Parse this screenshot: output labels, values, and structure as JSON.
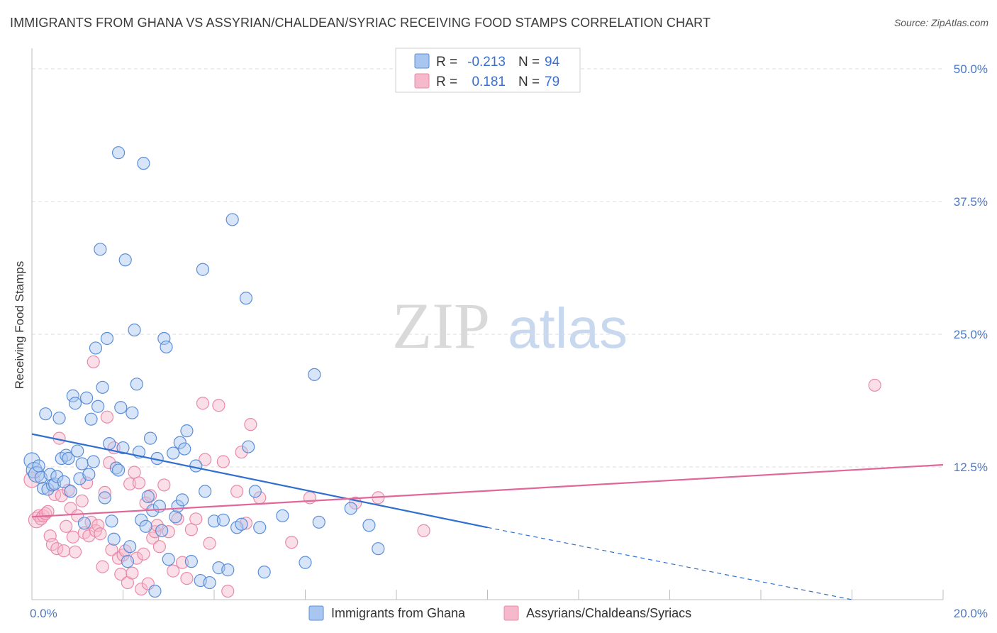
{
  "title": "IMMIGRANTS FROM GHANA VS ASSYRIAN/CHALDEAN/SYRIAC RECEIVING FOOD STAMPS CORRELATION CHART",
  "source": "Source: ZipAtlas.com",
  "watermark": {
    "zip": "ZIP",
    "atlas": "atlas"
  },
  "colors": {
    "blue_fill": "#a9c6f0",
    "blue_stroke": "#5a8ed8",
    "blue_line": "#2f6fd0",
    "pink_fill": "#f6b8cb",
    "pink_stroke": "#e98aa8",
    "pink_line": "#e0679a",
    "tick_label": "#4a78c7"
  },
  "legend_top": {
    "rows": [
      {
        "r_label": "R =",
        "r_value": "-0.213",
        "n_label": "N =",
        "n_value": "94"
      },
      {
        "r_label": "R =",
        "r_value": "0.181",
        "n_label": "N =",
        "n_value": "79"
      }
    ]
  },
  "chart_data": {
    "type": "scatter",
    "title": "IMMIGRANTS FROM GHANA VS ASSYRIAN/CHALDEAN/SYRIAC RECEIVING FOOD STAMPS CORRELATION CHART",
    "xlabel": "",
    "ylabel": "Receiving Food Stamps",
    "xlim": [
      0,
      20
    ],
    "ylim": [
      0,
      50
    ],
    "x_ticks": [
      {
        "value": 0,
        "label": "0.0%"
      },
      {
        "value": 20,
        "label": "20.0%"
      }
    ],
    "y_ticks": [
      {
        "value": 12.5,
        "label": "12.5%"
      },
      {
        "value": 25,
        "label": "25.0%"
      },
      {
        "value": 37.5,
        "label": "37.5%"
      },
      {
        "value": 50,
        "label": "50.0%"
      }
    ],
    "grid": true,
    "legend_position": "bottom",
    "series": [
      {
        "name": "Immigrants from Ghana",
        "color": "#a9c6f0",
        "trend": {
          "x_start": 0,
          "y_start": 15.6,
          "x_end": 10,
          "y_end": 6.8,
          "dashed_x_end": 18,
          "dashed_y_end": 0
        },
        "points": [
          [
            0.0,
            13.1
          ],
          [
            0.05,
            12.2
          ],
          [
            0.1,
            11.8
          ],
          [
            0.15,
            12.6
          ],
          [
            0.2,
            11.5
          ],
          [
            0.25,
            10.5
          ],
          [
            0.3,
            17.5
          ],
          [
            0.35,
            10.4
          ],
          [
            0.4,
            11.8
          ],
          [
            0.45,
            10.8
          ],
          [
            0.5,
            10.9
          ],
          [
            0.55,
            11.6
          ],
          [
            0.6,
            17.1
          ],
          [
            0.65,
            13.3
          ],
          [
            0.7,
            11.1
          ],
          [
            0.75,
            13.6
          ],
          [
            0.8,
            13.3
          ],
          [
            0.85,
            10.2
          ],
          [
            0.9,
            19.2
          ],
          [
            0.95,
            18.5
          ],
          [
            1.0,
            14.0
          ],
          [
            1.05,
            11.4
          ],
          [
            1.1,
            12.8
          ],
          [
            1.15,
            7.2
          ],
          [
            1.2,
            19.0
          ],
          [
            1.25,
            11.8
          ],
          [
            1.3,
            17.0
          ],
          [
            1.35,
            13.0
          ],
          [
            1.4,
            23.7
          ],
          [
            1.45,
            18.2
          ],
          [
            1.5,
            33.0
          ],
          [
            1.55,
            20.0
          ],
          [
            1.6,
            9.6
          ],
          [
            1.65,
            24.6
          ],
          [
            1.7,
            14.7
          ],
          [
            1.75,
            7.4
          ],
          [
            1.8,
            5.7
          ],
          [
            1.85,
            12.4
          ],
          [
            1.9,
            42.1
          ],
          [
            1.95,
            18.1
          ],
          [
            2.0,
            14.3
          ],
          [
            2.05,
            32.0
          ],
          [
            2.1,
            3.6
          ],
          [
            2.15,
            5.0
          ],
          [
            2.2,
            17.6
          ],
          [
            2.25,
            25.4
          ],
          [
            2.3,
            20.3
          ],
          [
            2.35,
            13.9
          ],
          [
            2.4,
            7.5
          ],
          [
            2.45,
            41.1
          ],
          [
            2.5,
            6.9
          ],
          [
            2.55,
            9.7
          ],
          [
            2.6,
            15.2
          ],
          [
            2.65,
            8.4
          ],
          [
            2.7,
            0.8
          ],
          [
            2.75,
            13.3
          ],
          [
            2.8,
            8.8
          ],
          [
            2.85,
            6.5
          ],
          [
            2.9,
            24.6
          ],
          [
            2.95,
            23.8
          ],
          [
            3.0,
            3.8
          ],
          [
            3.1,
            13.8
          ],
          [
            3.15,
            7.8
          ],
          [
            3.2,
            8.8
          ],
          [
            3.25,
            14.8
          ],
          [
            3.3,
            9.4
          ],
          [
            3.35,
            14.2
          ],
          [
            3.4,
            15.9
          ],
          [
            3.5,
            3.6
          ],
          [
            3.6,
            12.6
          ],
          [
            3.7,
            1.8
          ],
          [
            3.75,
            31.1
          ],
          [
            3.8,
            10.2
          ],
          [
            3.9,
            1.6
          ],
          [
            4.0,
            7.4
          ],
          [
            4.1,
            3.0
          ],
          [
            4.2,
            7.5
          ],
          [
            4.3,
            2.8
          ],
          [
            4.4,
            35.8
          ],
          [
            4.5,
            6.8
          ],
          [
            4.6,
            7.1
          ],
          [
            4.7,
            28.4
          ],
          [
            4.75,
            14.4
          ],
          [
            4.9,
            10.2
          ],
          [
            5.0,
            6.8
          ],
          [
            5.1,
            2.6
          ],
          [
            5.5,
            7.9
          ],
          [
            6.0,
            3.5
          ],
          [
            6.2,
            21.2
          ],
          [
            6.3,
            7.3
          ],
          [
            7.0,
            8.6
          ],
          [
            7.4,
            7.0
          ],
          [
            7.6,
            4.8
          ],
          [
            1.9,
            12.2
          ]
        ]
      },
      {
        "name": "Assyrians/Chaldeans/Syriacs",
        "color": "#f6b8cb",
        "trend": {
          "x_start": 0,
          "y_start": 7.8,
          "x_end": 20,
          "y_end": 12.7
        },
        "points": [
          [
            0.0,
            11.3
          ],
          [
            0.1,
            7.5
          ],
          [
            0.15,
            7.9
          ],
          [
            0.2,
            7.6
          ],
          [
            0.25,
            7.9
          ],
          [
            0.3,
            8.1
          ],
          [
            0.35,
            8.3
          ],
          [
            0.4,
            6.0
          ],
          [
            0.45,
            5.2
          ],
          [
            0.5,
            9.9
          ],
          [
            0.55,
            4.8
          ],
          [
            0.6,
            15.2
          ],
          [
            0.65,
            9.8
          ],
          [
            0.7,
            4.6
          ],
          [
            0.75,
            6.9
          ],
          [
            0.8,
            10.3
          ],
          [
            0.85,
            8.6
          ],
          [
            0.9,
            5.9
          ],
          [
            0.95,
            4.5
          ],
          [
            1.0,
            7.9
          ],
          [
            1.1,
            9.3
          ],
          [
            1.15,
            6.3
          ],
          [
            1.2,
            11.0
          ],
          [
            1.25,
            6.0
          ],
          [
            1.3,
            7.3
          ],
          [
            1.35,
            22.4
          ],
          [
            1.4,
            6.5
          ],
          [
            1.45,
            7.0
          ],
          [
            1.5,
            6.2
          ],
          [
            1.55,
            3.1
          ],
          [
            1.6,
            10.1
          ],
          [
            1.65,
            17.2
          ],
          [
            1.7,
            12.9
          ],
          [
            1.75,
            4.7
          ],
          [
            1.8,
            14.3
          ],
          [
            1.9,
            3.9
          ],
          [
            1.95,
            2.4
          ],
          [
            2.0,
            4.2
          ],
          [
            2.05,
            4.6
          ],
          [
            2.1,
            1.6
          ],
          [
            2.15,
            10.9
          ],
          [
            2.2,
            2.5
          ],
          [
            2.25,
            12.0
          ],
          [
            2.3,
            3.9
          ],
          [
            2.35,
            11.0
          ],
          [
            2.4,
            1.0
          ],
          [
            2.45,
            4.3
          ],
          [
            2.5,
            9.1
          ],
          [
            2.55,
            1.5
          ],
          [
            2.6,
            9.8
          ],
          [
            2.65,
            5.8
          ],
          [
            2.7,
            6.4
          ],
          [
            2.75,
            7.0
          ],
          [
            2.8,
            5.0
          ],
          [
            2.9,
            10.8
          ],
          [
            3.0,
            6.4
          ],
          [
            3.1,
            2.7
          ],
          [
            3.2,
            7.6
          ],
          [
            3.3,
            3.5
          ],
          [
            3.4,
            2.0
          ],
          [
            3.5,
            6.6
          ],
          [
            3.6,
            7.6
          ],
          [
            3.75,
            18.5
          ],
          [
            3.8,
            13.2
          ],
          [
            3.9,
            5.3
          ],
          [
            4.1,
            18.3
          ],
          [
            4.2,
            13.0
          ],
          [
            4.3,
            0.8
          ],
          [
            4.5,
            10.2
          ],
          [
            4.6,
            13.9
          ],
          [
            4.7,
            7.2
          ],
          [
            4.8,
            16.5
          ],
          [
            5.0,
            9.6
          ],
          [
            5.7,
            5.4
          ],
          [
            6.1,
            9.6
          ],
          [
            7.1,
            9.1
          ],
          [
            7.6,
            9.6
          ],
          [
            8.6,
            6.5
          ],
          [
            18.5,
            20.2
          ]
        ]
      }
    ]
  },
  "legend_bottom": {
    "items": [
      "Immigrants from Ghana",
      "Assyrians/Chaldeans/Syriacs"
    ]
  }
}
